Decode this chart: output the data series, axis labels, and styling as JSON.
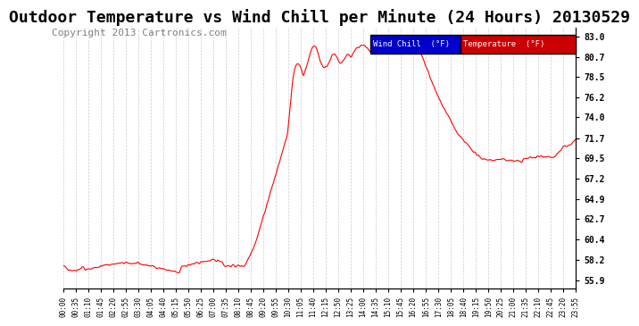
{
  "title": "Outdoor Temperature vs Wind Chill per Minute (24 Hours) 20130529",
  "copyright": "Copyright 2013 Cartronics.com",
  "ylabel_right_ticks": [
    55.9,
    58.2,
    60.4,
    62.7,
    64.9,
    67.2,
    69.5,
    71.7,
    74.0,
    76.2,
    78.5,
    80.7,
    83.0
  ],
  "ylim": [
    55.0,
    84.0
  ],
  "line_color": "#ff0000",
  "bg_color": "#ffffff",
  "grid_color": "#cccccc",
  "title_fontsize": 13,
  "copyright_fontsize": 8,
  "legend_wind_chill_bg": "#0000cc",
  "legend_temp_bg": "#cc0000",
  "legend_text_color": "#ffffff",
  "x_labels": [
    "00:00",
    "00:35",
    "01:10",
    "01:45",
    "02:20",
    "02:55",
    "03:30",
    "04:05",
    "04:40",
    "05:15",
    "05:50",
    "06:25",
    "07:00",
    "07:35",
    "08:10",
    "08:45",
    "09:20",
    "09:55",
    "10:30",
    "11:05",
    "11:40",
    "12:15",
    "12:50",
    "13:25",
    "14:00",
    "14:35",
    "15:10",
    "15:45",
    "16:20",
    "16:55",
    "17:30",
    "18:05",
    "18:40",
    "19:15",
    "19:50",
    "20:25",
    "21:00",
    "21:35",
    "22:10",
    "22:45",
    "23:20",
    "23:55"
  ]
}
